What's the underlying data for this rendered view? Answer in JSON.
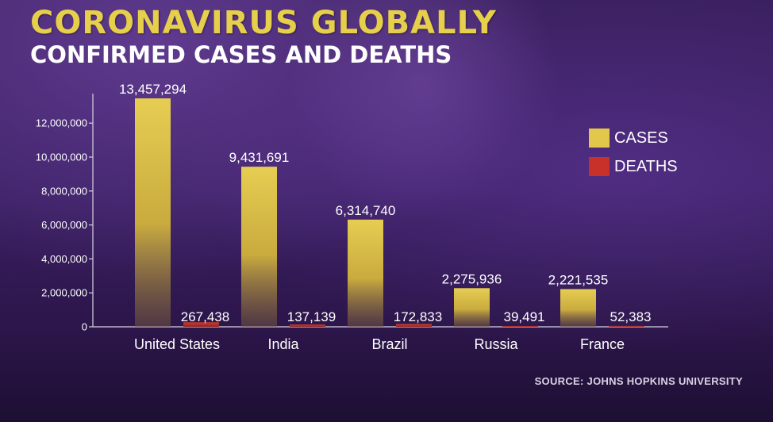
{
  "header": {
    "title": "CORONAVIRUS GLOBALLY",
    "subtitle": "CONFIRMED CASES AND DEATHS"
  },
  "source": "SOURCE: JOHNS HOPKINS UNIVERSITY",
  "colors": {
    "cases": "#e2c84a",
    "deaths": "#c8312a",
    "title": "#e6cf4a"
  },
  "legend": [
    {
      "name": "CASES",
      "color": "#e2c84a"
    },
    {
      "name": "DEATHS",
      "color": "#c8312a"
    }
  ],
  "chart_data": {
    "type": "bar",
    "title": "CORONAVIRUS GLOBALLY",
    "subtitle": "CONFIRMED CASES AND DEATHS",
    "categories": [
      "United States",
      "India",
      "Brazil",
      "Russia",
      "France"
    ],
    "series": [
      {
        "name": "CASES",
        "values": [
          13457294,
          9431691,
          6314740,
          2275936,
          2221535
        ],
        "labels": [
          "13,457,294",
          "9,431,691",
          "6,314,740",
          "2,275,936",
          "2,221,535"
        ]
      },
      {
        "name": "DEATHS",
        "values": [
          267438,
          137139,
          172833,
          39491,
          52383
        ],
        "labels": [
          "267,438",
          "137,139",
          "172,833",
          "39,491",
          "52,383"
        ]
      }
    ],
    "yticks": [
      0,
      2000000,
      4000000,
      6000000,
      8000000,
      10000000,
      12000000
    ],
    "ytick_labels": [
      "0",
      "2,000,000",
      "4,000,000",
      "6,000,000",
      "8,000,000",
      "10,000,000",
      "12,000,000"
    ],
    "ylim": [
      0,
      14000000
    ],
    "xlabel": "",
    "ylabel": "",
    "grid": false,
    "legend_position": "right"
  }
}
